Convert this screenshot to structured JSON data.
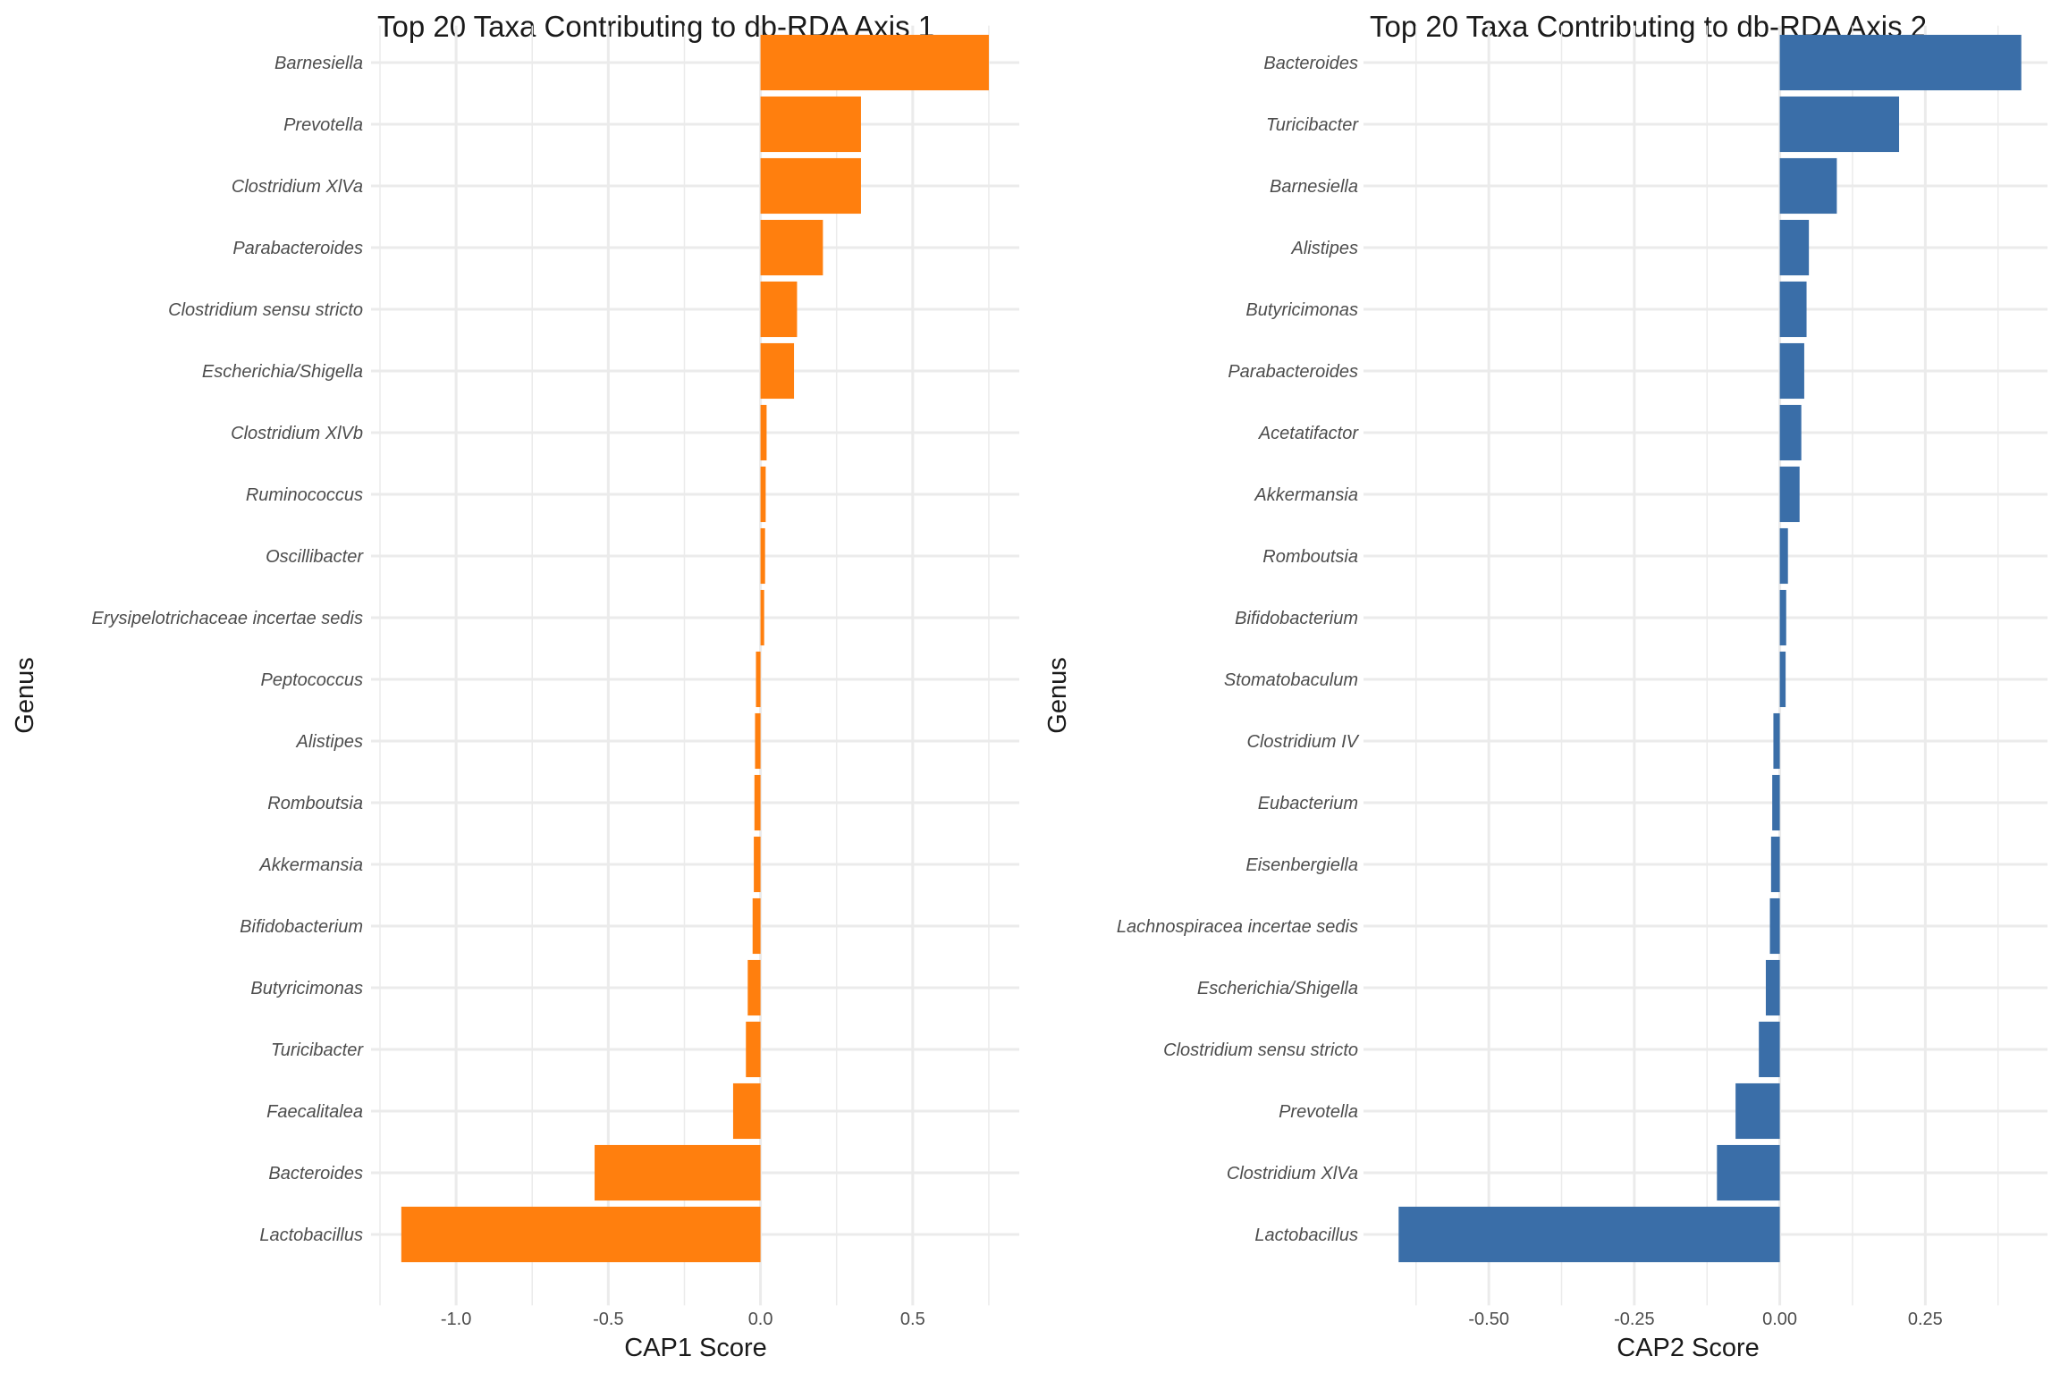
{
  "chart_data": [
    {
      "type": "bar",
      "orientation": "horizontal",
      "title": "Top 20 Taxa Contributing to db-RDA Axis 1",
      "xlabel": "CAP1 Score",
      "ylabel": "Genus",
      "color": "#FF7F0E",
      "xlim": [
        -1.25,
        0.85
      ],
      "xticks": [
        -1.0,
        -0.5,
        0.0,
        0.5
      ],
      "xtick_labels": [
        "-1.0",
        "-0.5",
        "0.0",
        "0.5"
      ],
      "categories": [
        "Barnesiella",
        "Prevotella",
        "Clostridium XlVa",
        "Parabacteroides",
        "Clostridium sensu stricto",
        "Escherichia/Shigella",
        "Clostridium XlVb",
        "Ruminococcus",
        "Oscillibacter",
        "Erysipelotrichaceae incertae sedis",
        "Peptococcus",
        "Alistipes",
        "Romboutsia",
        "Akkermansia",
        "Bifidobacterium",
        "Butyricimonas",
        "Turicibacter",
        "Faecalitalea",
        "Bacteroides",
        "Lactobacillus"
      ],
      "values": [
        0.75,
        0.33,
        0.33,
        0.205,
        0.12,
        0.11,
        0.02,
        0.017,
        0.015,
        0.012,
        -0.015,
        -0.018,
        -0.02,
        -0.022,
        -0.026,
        -0.042,
        -0.048,
        -0.09,
        -0.545,
        -1.18
      ],
      "grid": true
    },
    {
      "type": "bar",
      "orientation": "horizontal",
      "title": "Top 20 Taxa Contributing to db-RDA Axis 2",
      "xlabel": "CAP2 Score",
      "ylabel": "Genus",
      "color": "#3A6EA8",
      "xlim": [
        -0.7,
        0.46
      ],
      "xticks": [
        -0.5,
        -0.25,
        0.0,
        0.25
      ],
      "xtick_labels": [
        "-0.50",
        "-0.25",
        "0.00",
        "0.25"
      ],
      "categories": [
        "Bacteroides",
        "Turicibacter",
        "Barnesiella",
        "Alistipes",
        "Butyricimonas",
        "Parabacteroides",
        "Acetatifactor",
        "Akkermansia",
        "Romboutsia",
        "Bifidobacterium",
        "Stomatobaculum",
        "Clostridium IV",
        "Eubacterium",
        "Eisenbergiella",
        "Lachnospiracea incertae sedis",
        "Escherichia/Shigella",
        "Clostridium sensu stricto",
        "Prevotella",
        "Clostridium XlVa",
        "Lactobacillus"
      ],
      "values": [
        0.415,
        0.205,
        0.098,
        0.05,
        0.046,
        0.042,
        0.037,
        0.034,
        0.014,
        0.011,
        0.01,
        -0.011,
        -0.013,
        -0.015,
        -0.017,
        -0.024,
        -0.036,
        -0.076,
        -0.108,
        -0.655
      ],
      "grid": true
    }
  ]
}
